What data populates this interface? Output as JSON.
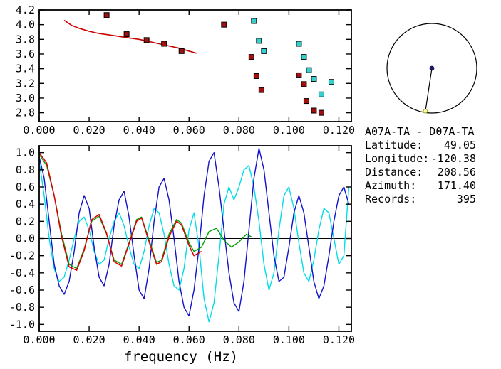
{
  "station_info": {
    "title": "A07A-TA - D07A-TA",
    "rows": [
      {
        "label": "Latitude:",
        "value": "49.05"
      },
      {
        "label": "Longitude:",
        "value": "-120.38"
      },
      {
        "label": "Distance:",
        "value": "208.56"
      },
      {
        "label": "Azimuth:",
        "value": "171.40"
      },
      {
        "label": "Records:",
        "value": "395"
      }
    ]
  },
  "azimuth_plot": {
    "azimuth_deg": 171.4,
    "circle_color": "#000000",
    "center_dot_color": "#1a1a66",
    "end_dot_color": "#ffff99"
  },
  "chart_data": [
    {
      "type": "scatter",
      "title": "",
      "xlabel": "",
      "ylabel": "",
      "xlim": [
        0,
        0.125
      ],
      "ylim": [
        2.68,
        4.2
      ],
      "xticks": [
        0.0,
        0.02,
        0.04,
        0.06,
        0.08,
        0.1,
        0.12
      ],
      "yticks": [
        2.8,
        3.0,
        3.2,
        3.4,
        3.6,
        3.8,
        4.0,
        4.2
      ],
      "xtick_decimals": 3,
      "ytick_decimals": 1,
      "grid": false,
      "series": [
        {
          "name": "dispersion-curve",
          "type": "line",
          "color": "#cc0000",
          "width": 1.6,
          "points": [
            [
              0.01,
              4.06
            ],
            [
              0.013,
              3.99
            ],
            [
              0.016,
              3.95
            ],
            [
              0.02,
              3.91
            ],
            [
              0.024,
              3.88
            ],
            [
              0.028,
              3.86
            ],
            [
              0.032,
              3.84
            ],
            [
              0.036,
              3.82
            ],
            [
              0.04,
              3.8
            ],
            [
              0.044,
              3.77
            ],
            [
              0.048,
              3.74
            ],
            [
              0.052,
              3.71
            ],
            [
              0.056,
              3.68
            ],
            [
              0.06,
              3.64
            ],
            [
              0.063,
              3.61
            ]
          ]
        },
        {
          "name": "red-measurements",
          "type": "scatter",
          "color": "#a01010",
          "points": [
            [
              0.027,
              4.13
            ],
            [
              0.035,
              3.87
            ],
            [
              0.043,
              3.79
            ],
            [
              0.05,
              3.74
            ],
            [
              0.057,
              3.64
            ],
            [
              0.074,
              4.0
            ],
            [
              0.085,
              3.56
            ],
            [
              0.087,
              3.3
            ],
            [
              0.089,
              3.11
            ],
            [
              0.104,
              3.31
            ],
            [
              0.106,
              3.19
            ],
            [
              0.107,
              2.96
            ],
            [
              0.11,
              2.83
            ],
            [
              0.113,
              2.8
            ]
          ]
        },
        {
          "name": "cyan-measurements",
          "type": "scatter",
          "color": "#35d0cd",
          "points": [
            [
              0.086,
              4.05
            ],
            [
              0.088,
              3.78
            ],
            [
              0.09,
              3.64
            ],
            [
              0.104,
              3.74
            ],
            [
              0.106,
              3.56
            ],
            [
              0.108,
              3.38
            ],
            [
              0.11,
              3.26
            ],
            [
              0.113,
              3.05
            ],
            [
              0.117,
              3.22
            ]
          ]
        }
      ]
    },
    {
      "type": "line",
      "title": "",
      "xlabel": "frequency (Hz)",
      "ylabel": "",
      "xlim": [
        0,
        0.125
      ],
      "ylim": [
        -1.08,
        1.08
      ],
      "xticks": [
        0.0,
        0.02,
        0.04,
        0.06,
        0.08,
        0.1,
        0.12
      ],
      "yticks": [
        -1.0,
        -0.8,
        -0.6,
        -0.4,
        -0.2,
        0.0,
        0.2,
        0.4,
        0.6,
        0.8,
        1.0
      ],
      "xtick_decimals": 3,
      "ytick_decimals": 1,
      "zero_line": true,
      "grid": false,
      "series": [
        {
          "name": "cyan-trace",
          "type": "line",
          "color": "#00dde8",
          "width": 1.4,
          "points": [
            [
              0,
              0.9
            ],
            [
              0.002,
              0.5
            ],
            [
              0.004,
              0.0
            ],
            [
              0.006,
              -0.35
            ],
            [
              0.008,
              -0.5
            ],
            [
              0.01,
              -0.45
            ],
            [
              0.012,
              -0.25
            ],
            [
              0.014,
              0.0
            ],
            [
              0.016,
              0.2
            ],
            [
              0.018,
              0.25
            ],
            [
              0.02,
              0.1
            ],
            [
              0.022,
              -0.15
            ],
            [
              0.024,
              -0.3
            ],
            [
              0.026,
              -0.25
            ],
            [
              0.028,
              0.0
            ],
            [
              0.03,
              0.2
            ],
            [
              0.032,
              0.3
            ],
            [
              0.034,
              0.15
            ],
            [
              0.036,
              -0.1
            ],
            [
              0.038,
              -0.3
            ],
            [
              0.04,
              -0.35
            ],
            [
              0.042,
              -0.15
            ],
            [
              0.044,
              0.15
            ],
            [
              0.046,
              0.35
            ],
            [
              0.048,
              0.3
            ],
            [
              0.05,
              0.05
            ],
            [
              0.052,
              -0.3
            ],
            [
              0.054,
              -0.55
            ],
            [
              0.056,
              -0.6
            ],
            [
              0.058,
              -0.35
            ],
            [
              0.06,
              0.1
            ],
            [
              0.062,
              0.3
            ],
            [
              0.064,
              -0.1
            ],
            [
              0.066,
              -0.7
            ],
            [
              0.068,
              -0.97
            ],
            [
              0.07,
              -0.75
            ],
            [
              0.072,
              -0.2
            ],
            [
              0.074,
              0.4
            ],
            [
              0.076,
              0.6
            ],
            [
              0.078,
              0.45
            ],
            [
              0.08,
              0.6
            ],
            [
              0.082,
              0.8
            ],
            [
              0.084,
              0.85
            ],
            [
              0.086,
              0.6
            ],
            [
              0.088,
              0.2
            ],
            [
              0.09,
              -0.3
            ],
            [
              0.092,
              -0.6
            ],
            [
              0.094,
              -0.4
            ],
            [
              0.096,
              0.1
            ],
            [
              0.098,
              0.5
            ],
            [
              0.1,
              0.6
            ],
            [
              0.102,
              0.35
            ],
            [
              0.104,
              -0.05
            ],
            [
              0.106,
              -0.4
            ],
            [
              0.108,
              -0.5
            ],
            [
              0.11,
              -0.25
            ],
            [
              0.112,
              0.1
            ],
            [
              0.114,
              0.35
            ],
            [
              0.116,
              0.3
            ],
            [
              0.118,
              0.0
            ],
            [
              0.12,
              -0.3
            ],
            [
              0.122,
              -0.2
            ],
            [
              0.124,
              0.6
            ]
          ]
        },
        {
          "name": "blue-trace",
          "type": "line",
          "color": "#1212cc",
          "width": 1.4,
          "points": [
            [
              0,
              0.95
            ],
            [
              0.002,
              0.7
            ],
            [
              0.004,
              0.2
            ],
            [
              0.006,
              -0.3
            ],
            [
              0.008,
              -0.55
            ],
            [
              0.01,
              -0.65
            ],
            [
              0.012,
              -0.5
            ],
            [
              0.014,
              -0.15
            ],
            [
              0.016,
              0.3
            ],
            [
              0.018,
              0.5
            ],
            [
              0.02,
              0.35
            ],
            [
              0.022,
              -0.1
            ],
            [
              0.024,
              -0.45
            ],
            [
              0.026,
              -0.55
            ],
            [
              0.028,
              -0.3
            ],
            [
              0.03,
              0.15
            ],
            [
              0.032,
              0.45
            ],
            [
              0.034,
              0.55
            ],
            [
              0.036,
              0.25
            ],
            [
              0.038,
              -0.2
            ],
            [
              0.04,
              -0.6
            ],
            [
              0.042,
              -0.7
            ],
            [
              0.044,
              -0.35
            ],
            [
              0.046,
              0.2
            ],
            [
              0.048,
              0.6
            ],
            [
              0.05,
              0.7
            ],
            [
              0.052,
              0.45
            ],
            [
              0.054,
              0.0
            ],
            [
              0.056,
              -0.5
            ],
            [
              0.058,
              -0.8
            ],
            [
              0.06,
              -0.9
            ],
            [
              0.062,
              -0.6
            ],
            [
              0.064,
              -0.1
            ],
            [
              0.066,
              0.5
            ],
            [
              0.068,
              0.9
            ],
            [
              0.07,
              1.0
            ],
            [
              0.072,
              0.6
            ],
            [
              0.074,
              0.1
            ],
            [
              0.076,
              -0.4
            ],
            [
              0.078,
              -0.75
            ],
            [
              0.08,
              -0.85
            ],
            [
              0.082,
              -0.5
            ],
            [
              0.084,
              0.1
            ],
            [
              0.086,
              0.7
            ],
            [
              0.088,
              1.05
            ],
            [
              0.09,
              0.8
            ],
            [
              0.092,
              0.3
            ],
            [
              0.094,
              -0.2
            ],
            [
              0.096,
              -0.5
            ],
            [
              0.098,
              -0.45
            ],
            [
              0.1,
              -0.1
            ],
            [
              0.102,
              0.3
            ],
            [
              0.104,
              0.5
            ],
            [
              0.106,
              0.3
            ],
            [
              0.108,
              -0.1
            ],
            [
              0.11,
              -0.5
            ],
            [
              0.112,
              -0.7
            ],
            [
              0.114,
              -0.55
            ],
            [
              0.116,
              -0.2
            ],
            [
              0.118,
              0.2
            ],
            [
              0.12,
              0.5
            ],
            [
              0.122,
              0.6
            ],
            [
              0.124,
              0.4
            ]
          ]
        },
        {
          "name": "green-trace",
          "type": "line",
          "color": "#00a000",
          "width": 1.4,
          "points": [
            [
              0,
              0.98
            ],
            [
              0.003,
              0.85
            ],
            [
              0.006,
              0.5
            ],
            [
              0.009,
              0.05
            ],
            [
              0.012,
              -0.3
            ],
            [
              0.015,
              -0.35
            ],
            [
              0.018,
              -0.12
            ],
            [
              0.021,
              0.2
            ],
            [
              0.024,
              0.26
            ],
            [
              0.027,
              0.05
            ],
            [
              0.03,
              -0.25
            ],
            [
              0.033,
              -0.3
            ],
            [
              0.036,
              -0.05
            ],
            [
              0.039,
              0.22
            ],
            [
              0.041,
              0.25
            ],
            [
              0.044,
              -0.02
            ],
            [
              0.047,
              -0.28
            ],
            [
              0.049,
              -0.25
            ],
            [
              0.052,
              0.05
            ],
            [
              0.055,
              0.22
            ],
            [
              0.057,
              0.18
            ],
            [
              0.06,
              -0.05
            ],
            [
              0.062,
              -0.15
            ],
            [
              0.065,
              -0.1
            ],
            [
              0.068,
              0.08
            ],
            [
              0.071,
              0.12
            ],
            [
              0.074,
              -0.02
            ],
            [
              0.077,
              -0.1
            ],
            [
              0.08,
              -0.04
            ],
            [
              0.083,
              0.05
            ],
            [
              0.085,
              0.02
            ]
          ]
        },
        {
          "name": "red-trace",
          "type": "line",
          "color": "#dd0000",
          "width": 1.5,
          "points": [
            [
              0,
              1.0
            ],
            [
              0.003,
              0.88
            ],
            [
              0.006,
              0.5
            ],
            [
              0.009,
              0.02
            ],
            [
              0.012,
              -0.33
            ],
            [
              0.015,
              -0.37
            ],
            [
              0.018,
              -0.14
            ],
            [
              0.021,
              0.22
            ],
            [
              0.024,
              0.28
            ],
            [
              0.027,
              0.06
            ],
            [
              0.03,
              -0.27
            ],
            [
              0.033,
              -0.32
            ],
            [
              0.036,
              -0.06
            ],
            [
              0.039,
              0.2
            ],
            [
              0.041,
              0.24
            ],
            [
              0.044,
              -0.04
            ],
            [
              0.047,
              -0.3
            ],
            [
              0.049,
              -0.27
            ],
            [
              0.052,
              0.02
            ],
            [
              0.055,
              0.2
            ],
            [
              0.057,
              0.16
            ],
            [
              0.06,
              -0.08
            ],
            [
              0.062,
              -0.2
            ],
            [
              0.065,
              -0.15
            ]
          ]
        }
      ]
    }
  ]
}
